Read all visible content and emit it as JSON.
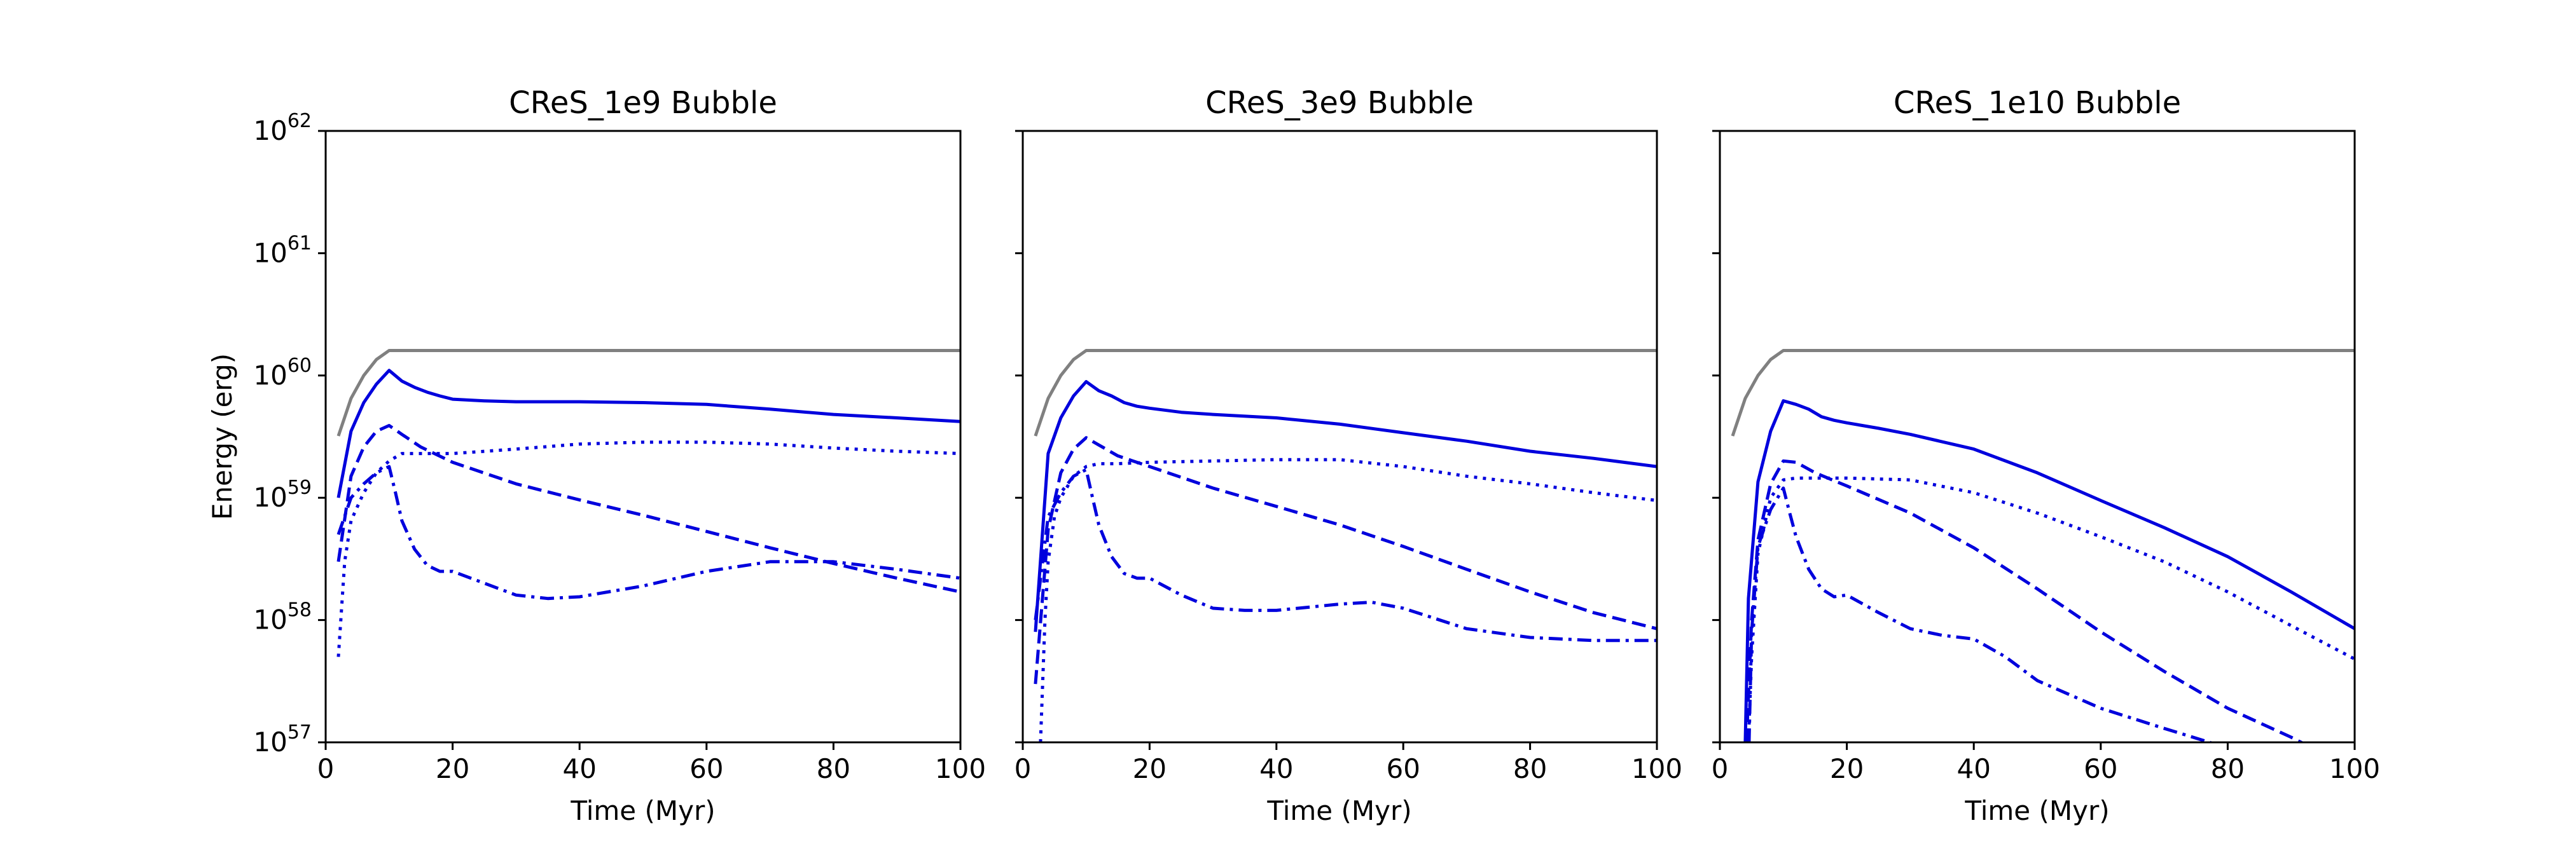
{
  "chart_data": [
    {
      "type": "line",
      "title": "CReS_1e9 Bubble",
      "xlabel": "Time (Myr)",
      "ylabel": "Energy (erg)",
      "xlim": [
        0,
        100
      ],
      "ylim": [
        1e+57,
        1e+62
      ],
      "yscale": "log",
      "xticks": [
        "0",
        "20",
        "40",
        "60",
        "80",
        "100"
      ],
      "yticks": [
        "57",
        "58",
        "59",
        "60",
        "61",
        "62"
      ],
      "grid": false,
      "series": [
        {
          "color": "#808080",
          "style": "solid",
          "x": [
            2,
            4,
            6,
            8,
            10,
            20,
            40,
            60,
            80,
            100
          ],
          "y": [
            3.2e+59,
            6.5e+59,
            1e+60,
            1.35e+60,
            1.6e+60,
            1.6e+60,
            1.6e+60,
            1.6e+60,
            1.6e+60,
            1.6e+60
          ]
        },
        {
          "color": "#0000dd",
          "style": "solid",
          "x": [
            2,
            4,
            6,
            8,
            10,
            12,
            14,
            16,
            18,
            20,
            25,
            30,
            40,
            50,
            60,
            70,
            80,
            90,
            100
          ],
          "y": [
            1e+59,
            3.5e+59,
            6e+59,
            8.5e+59,
            1.1e+60,
            9e+59,
            8e+59,
            7.3e+59,
            6.8e+59,
            6.4e+59,
            6.2e+59,
            6.1e+59,
            6.1e+59,
            6e+59,
            5.8e+59,
            5.3e+59,
            4.8e+59,
            4.5e+59,
            4.2e+59
          ]
        },
        {
          "color": "#0000dd",
          "style": "dashed",
          "x": [
            2,
            4,
            6,
            8,
            10,
            12,
            15,
            20,
            30,
            40,
            50,
            60,
            70,
            80,
            90,
            100
          ],
          "y": [
            3e+58,
            1.5e+59,
            2.6e+59,
            3.5e+59,
            3.9e+59,
            3.3e+59,
            2.6e+59,
            1.95e+59,
            1.3e+59,
            9.6e+58,
            7.2e+58,
            5.3e+58,
            3.9e+58,
            2.9e+58,
            2.2e+58,
            1.7e+58
          ]
        },
        {
          "color": "#0000dd",
          "style": "dotted",
          "x": [
            2,
            3,
            4,
            6,
            8,
            10,
            12,
            15,
            20,
            30,
            40,
            50,
            60,
            70,
            80,
            90,
            100
          ],
          "y": [
            5e+57,
            3e+58,
            6.5e+58,
            1.1e+59,
            1.6e+59,
            2e+59,
            2.3e+59,
            2.3e+59,
            2.3e+59,
            2.5e+59,
            2.75e+59,
            2.85e+59,
            2.85e+59,
            2.75e+59,
            2.55e+59,
            2.4e+59,
            2.3e+59
          ]
        },
        {
          "color": "#0000dd",
          "style": "dashdot",
          "x": [
            2,
            4,
            6,
            8,
            10,
            11,
            12,
            14,
            16,
            18,
            20,
            25,
            30,
            35,
            40,
            50,
            60,
            70,
            80,
            90,
            100
          ],
          "y": [
            5e+58,
            1e+59,
            1.3e+59,
            1.6e+59,
            1.8e+59,
            1.1e+59,
            6.5e+58,
            3.8e+58,
            2.8e+58,
            2.5e+58,
            2.5e+58,
            2e+58,
            1.6e+58,
            1.5e+58,
            1.55e+58,
            1.9e+58,
            2.5e+58,
            3e+58,
            3e+58,
            2.6e+58,
            2.2e+58
          ]
        }
      ]
    },
    {
      "type": "line",
      "title": "CReS_3e9 Bubble",
      "xlabel": "Time (Myr)",
      "ylabel": "",
      "xlim": [
        0,
        100
      ],
      "ylim": [
        1e+57,
        1e+62
      ],
      "yscale": "log",
      "xticks": [
        "0",
        "20",
        "40",
        "60",
        "80",
        "100"
      ],
      "grid": false,
      "series": [
        {
          "color": "#808080",
          "style": "solid",
          "x": [
            2,
            4,
            6,
            8,
            10,
            20,
            40,
            60,
            80,
            100
          ],
          "y": [
            3.2e+59,
            6.5e+59,
            1e+60,
            1.35e+60,
            1.6e+60,
            1.6e+60,
            1.6e+60,
            1.6e+60,
            1.6e+60,
            1.6e+60
          ]
        },
        {
          "color": "#0000dd",
          "style": "solid",
          "x": [
            2,
            4,
            6,
            8,
            10,
            12,
            14,
            16,
            18,
            20,
            25,
            30,
            40,
            50,
            60,
            70,
            80,
            90,
            100
          ],
          "y": [
            8e+57,
            2.3e+59,
            4.5e+59,
            6.8e+59,
            8.9e+59,
            7.5e+59,
            6.8e+59,
            6e+59,
            5.6e+59,
            5.4e+59,
            5e+59,
            4.8e+59,
            4.5e+59,
            4e+59,
            3.4e+59,
            2.9e+59,
            2.4e+59,
            2.1e+59,
            1.8e+59
          ]
        },
        {
          "color": "#0000dd",
          "style": "dashed",
          "x": [
            2,
            4,
            6,
            8,
            10,
            12,
            15,
            20,
            30,
            40,
            50,
            60,
            70,
            80,
            90,
            100
          ],
          "y": [
            3e+57,
            5.5e+58,
            1.6e+59,
            2.5e+59,
            3.1e+59,
            2.7e+59,
            2.2e+59,
            1.8e+59,
            1.2e+59,
            8.5e+58,
            6e+58,
            4e+58,
            2.6e+58,
            1.7e+58,
            1.15e+58,
            8.5e+57
          ]
        },
        {
          "color": "#0000dd",
          "style": "dotted",
          "x": [
            2.8,
            3.5,
            4,
            5,
            6,
            8,
            10,
            12,
            15,
            20,
            30,
            40,
            50,
            60,
            70,
            80,
            90,
            100
          ],
          "y": [
            1e+57,
            1e+58,
            3e+58,
            7e+58,
            1e+59,
            1.5e+59,
            1.8e+59,
            1.9e+59,
            1.9e+59,
            1.95e+59,
            2e+59,
            2.05e+59,
            2.05e+59,
            1.8e+59,
            1.5e+59,
            1.3e+59,
            1.1e+59,
            9.5e+58
          ]
        },
        {
          "color": "#0000dd",
          "style": "dashdot",
          "x": [
            2,
            4,
            6,
            8,
            10,
            11,
            12,
            14,
            16,
            18,
            20,
            25,
            30,
            35,
            40,
            50,
            55,
            60,
            70,
            80,
            90,
            100
          ],
          "y": [
            1e+58,
            7e+58,
            1.1e+59,
            1.5e+59,
            1.7e+59,
            1e+59,
            6e+58,
            3.3e+58,
            2.4e+58,
            2.2e+58,
            2.2e+58,
            1.6e+58,
            1.25e+58,
            1.2e+58,
            1.2e+58,
            1.35e+58,
            1.4e+58,
            1.25e+58,
            8.5e+57,
            7.2e+57,
            6.8e+57,
            6.8e+57
          ]
        }
      ]
    },
    {
      "type": "line",
      "title": "CReS_1e10 Bubble",
      "xlabel": "Time (Myr)",
      "ylabel": "",
      "xlim": [
        0,
        100
      ],
      "ylim": [
        1e+57,
        1e+62
      ],
      "yscale": "log",
      "xticks": [
        "0",
        "20",
        "40",
        "60",
        "80",
        "100"
      ],
      "grid": false,
      "series": [
        {
          "color": "#808080",
          "style": "solid",
          "x": [
            2,
            4,
            6,
            8,
            10,
            20,
            40,
            60,
            80,
            100
          ],
          "y": [
            3.2e+59,
            6.5e+59,
            1e+60,
            1.35e+60,
            1.6e+60,
            1.6e+60,
            1.6e+60,
            1.6e+60,
            1.6e+60,
            1.6e+60
          ]
        },
        {
          "color": "#0000dd",
          "style": "solid",
          "x": [
            4,
            4.5,
            6,
            8,
            10,
            12,
            14,
            16,
            18,
            20,
            25,
            30,
            40,
            50,
            60,
            70,
            80,
            90,
            100
          ],
          "y": [
            1e+57,
            1.5e+58,
            1.35e+59,
            3.5e+59,
            6.2e+59,
            5.8e+59,
            5.3e+59,
            4.6e+59,
            4.3e+59,
            4.1e+59,
            3.7e+59,
            3.3e+59,
            2.5e+59,
            1.6e+59,
            9.5e+58,
            5.7e+58,
            3.3e+58,
            1.7e+58,
            8.5e+57
          ]
        },
        {
          "color": "#0000dd",
          "style": "dashed",
          "x": [
            4.2,
            5,
            6,
            8,
            10,
            12,
            15,
            20,
            30,
            40,
            50,
            60,
            70,
            80,
            90,
            100
          ],
          "y": [
            1e+57,
            1e+58,
            4.5e+58,
            1.3e+59,
            2e+59,
            1.95e+59,
            1.6e+59,
            1.25e+59,
            7.5e+58,
            3.9e+58,
            1.8e+58,
            8e+57,
            3.8e+57,
            1.9e+57,
            1.1e+57,
            6e+56
          ]
        },
        {
          "color": "#0000dd",
          "style": "dotted",
          "x": [
            4.5,
            5,
            6,
            8,
            10,
            12,
            15,
            20,
            30,
            40,
            50,
            60,
            70,
            80,
            90,
            100
          ],
          "y": [
            1e+57,
            5e+57,
            3.5e+58,
            1e+59,
            1.4e+59,
            1.45e+59,
            1.45e+59,
            1.45e+59,
            1.4e+59,
            1.1e+59,
            7.5e+58,
            4.8e+58,
            3e+58,
            1.7e+58,
            9e+57,
            4.8e+57
          ]
        },
        {
          "color": "#0000dd",
          "style": "dashdot",
          "x": [
            4.6,
            5,
            6,
            8,
            10,
            11,
            12,
            14,
            16,
            18,
            20,
            25,
            30,
            35,
            40,
            45,
            50,
            60,
            70,
            80,
            100
          ],
          "y": [
            1e+57,
            8e+57,
            4e+58,
            8e+58,
            1.2e+59,
            7.5e+58,
            4.8e+58,
            2.6e+58,
            1.8e+58,
            1.55e+58,
            1.6e+58,
            1.15e+58,
            8.5e+57,
            7.5e+57,
            7e+57,
            5e+57,
            3.2e+57,
            1.9e+57,
            1.3e+57,
            9e+56,
            4e+56
          ]
        }
      ]
    }
  ]
}
